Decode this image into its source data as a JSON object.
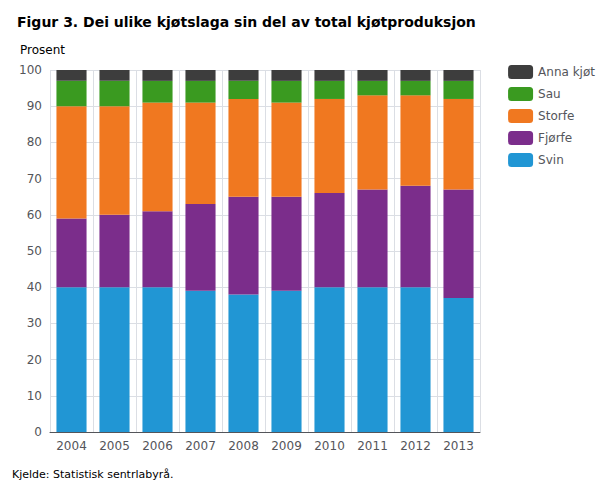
{
  "chart_data": {
    "type": "bar",
    "title": "Figur 3. Dei ulike kjøtslaga sin del av total kjøtproduksjon",
    "ylabel": "Prosent",
    "annotations": [
      "Kjelde: Statistisk sentrlabyrå."
    ],
    "categories": [
      "2004",
      "2005",
      "2006",
      "2007",
      "2008",
      "2009",
      "2010",
      "2011",
      "2012",
      "2013"
    ],
    "series": [
      {
        "name": "Svin",
        "color": "#2196d4",
        "values": [
          40,
          40,
          40,
          39,
          38,
          39,
          40,
          40,
          40,
          37
        ]
      },
      {
        "name": "Fjørfe",
        "color": "#7b2d8b",
        "values": [
          19,
          20,
          21,
          24,
          27,
          26,
          26,
          27,
          28,
          30
        ]
      },
      {
        "name": "Storfe",
        "color": "#f07820",
        "values": [
          31,
          30,
          30,
          28,
          27,
          26,
          26,
          26,
          25,
          25
        ]
      },
      {
        "name": "Sau",
        "color": "#3a9a20",
        "values": [
          7,
          7,
          6,
          6,
          5,
          6,
          5,
          4,
          4,
          5
        ]
      },
      {
        "name": "Anna kjøt",
        "color": "#3d3d3d",
        "values": [
          3,
          3,
          3,
          3,
          3,
          3,
          3,
          3,
          3,
          3
        ]
      }
    ],
    "stacked": true,
    "ylim": [
      0,
      100
    ],
    "yticks": [
      0,
      10,
      20,
      30,
      40,
      50,
      60,
      70,
      80,
      90,
      100
    ],
    "grid": true,
    "legend": "right"
  }
}
